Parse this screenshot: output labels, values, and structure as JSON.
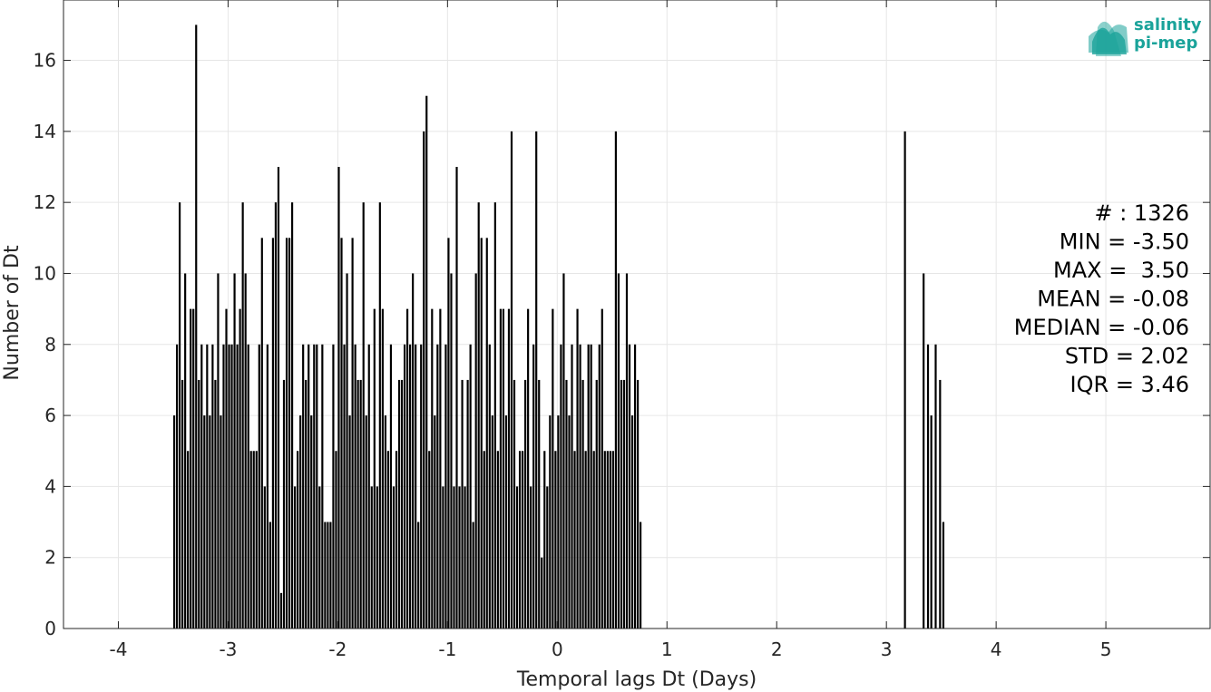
{
  "logo": {
    "line1": "salinity",
    "line2": "pi-mep",
    "color": "#1aa39a"
  },
  "stats": [
    "# : 1326",
    "MIN = -3.50",
    "MAX =  3.50",
    "MEAN = -0.08",
    "MEDIAN = -0.06",
    "STD = 2.02",
    "IQR = 3.46"
  ],
  "chart_data": {
    "type": "bar",
    "xlabel": "Temporal lags Dt (Days)",
    "ylabel": "Number of Dt",
    "xlim": [
      -4.5,
      5.95
    ],
    "ylim": [
      0,
      17.7
    ],
    "xticks": [
      -4,
      -3,
      -2,
      -1,
      0,
      1,
      2,
      3,
      4,
      5
    ],
    "yticks": [
      0,
      2,
      4,
      6,
      8,
      10,
      12,
      14,
      16
    ],
    "grid": true,
    "bar_color": "#000000",
    "bin_start": -3.5,
    "bin_width": 0.025,
    "values": [
      6,
      8,
      12,
      7,
      10,
      5,
      9,
      9,
      17,
      7,
      8,
      6,
      8,
      6,
      8,
      7,
      10,
      6,
      8,
      9,
      8,
      8,
      10,
      8,
      9,
      12,
      10,
      8,
      5,
      5,
      5,
      8,
      11,
      4,
      8,
      3,
      11,
      12,
      13,
      1,
      7,
      11,
      11,
      12,
      4,
      5,
      6,
      8,
      7,
      8,
      6,
      8,
      8,
      4,
      8,
      3,
      3,
      3,
      8,
      5,
      13,
      11,
      8,
      10,
      6,
      11,
      8,
      7,
      7,
      12,
      6,
      8,
      4,
      9,
      4,
      12,
      9,
      6,
      5,
      8,
      4,
      5,
      7,
      7,
      8,
      9,
      8,
      10,
      8,
      3,
      8,
      14,
      15,
      5,
      9,
      6,
      8,
      9,
      4,
      8,
      11,
      10,
      4,
      13,
      4,
      7,
      4,
      7,
      8,
      3,
      10,
      12,
      11,
      5,
      11,
      8,
      6,
      12,
      5,
      9,
      9,
      6,
      9,
      14,
      7,
      4,
      5,
      5,
      7,
      9,
      4,
      8,
      14,
      7,
      2,
      5,
      4,
      6,
      9,
      5,
      6,
      8,
      10,
      7,
      6,
      8,
      5,
      9,
      8,
      7,
      5,
      8,
      8,
      5,
      7,
      8,
      9,
      5,
      5,
      5,
      5,
      14,
      10,
      7,
      7,
      10,
      8,
      6,
      8,
      7,
      3
    ],
    "extra_bars": [
      {
        "x": 3.16,
        "value": 14
      },
      {
        "x": 3.33,
        "value": 10
      },
      {
        "x": 3.37,
        "value": 8
      },
      {
        "x": 3.4,
        "value": 6
      },
      {
        "x": 3.44,
        "value": 8
      },
      {
        "x": 3.48,
        "value": 7
      },
      {
        "x": 3.51,
        "value": 3
      }
    ]
  }
}
